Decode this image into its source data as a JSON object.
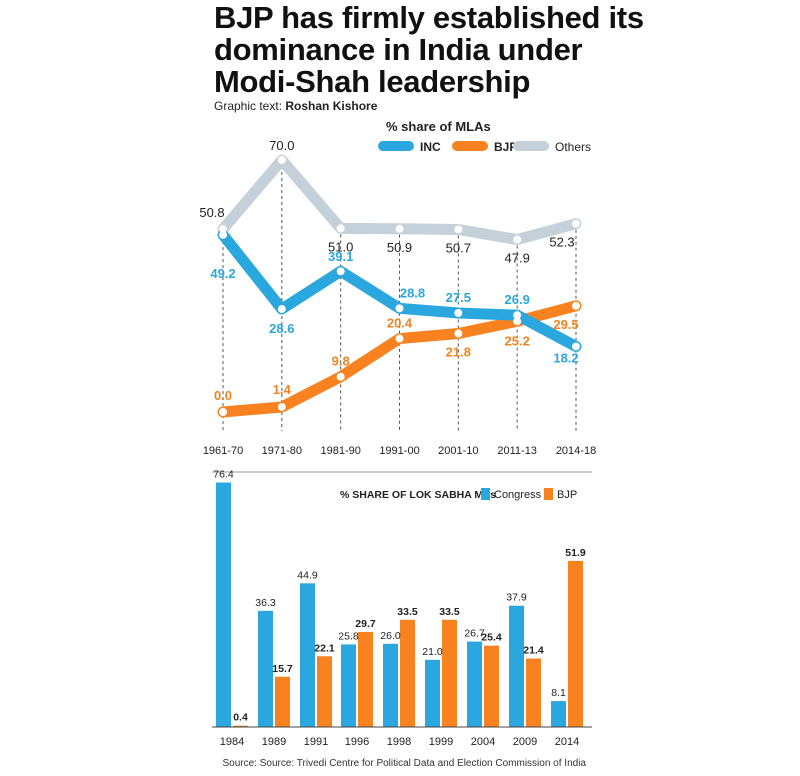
{
  "header": {
    "title_lines": [
      "BJP has firmly established its",
      "dominance in India under",
      "Modi-Shah leadership"
    ],
    "credit_label": "Graphic text:",
    "credit_name": "Roshan Kishore"
  },
  "source": "Source: Source: Trivedi Centre for Political Data and Election Commission of India",
  "colors": {
    "inc": "#2aa7df",
    "bjp": "#f7821f",
    "others": "#c5d1da"
  },
  "chart_data": [
    {
      "type": "line",
      "title": "% share of MLAs",
      "x": [
        "1961-70",
        "1971-80",
        "1981-90",
        "1991-00",
        "2001-10",
        "2011-13",
        "2014-18"
      ],
      "ylim": [
        0,
        75
      ],
      "legend": "top-center",
      "series": [
        {
          "name": "INC",
          "values": [
            49.2,
            28.6,
            39.1,
            28.8,
            27.5,
            26.9,
            18.2
          ],
          "labels": [
            "49.2",
            "28.6",
            "39.1",
            "28.8",
            "27.5",
            "26.9",
            "18.2"
          ]
        },
        {
          "name": "BJP",
          "values": [
            0.0,
            1.4,
            9.8,
            20.4,
            21.8,
            25.2,
            29.5
          ],
          "labels": [
            "0.0",
            "1.4",
            "9.8",
            "20.4",
            "21.8",
            "25.2",
            "29.5"
          ]
        },
        {
          "name": "Others",
          "values": [
            50.8,
            70.0,
            51.0,
            50.9,
            50.7,
            47.9,
            52.3
          ],
          "labels": [
            "50.8",
            "70.0",
            "51.0",
            "50.9",
            "50.7",
            "47.9",
            "52.3"
          ]
        }
      ]
    },
    {
      "type": "bar",
      "title": "% SHARE OF LOK SABHA MPs",
      "categories": [
        "1984",
        "1989",
        "1991",
        "1996",
        "1998",
        "1999",
        "2004",
        "2009",
        "2014"
      ],
      "ylim": [
        0,
        80
      ],
      "legend": "top-right",
      "series": [
        {
          "name": "Congress",
          "values": [
            76.4,
            36.3,
            44.9,
            25.8,
            26.0,
            21.0,
            26.7,
            37.9,
            8.1
          ],
          "labels": [
            "76.4",
            "36.3",
            "44.9",
            "25.8",
            "26.0",
            "21.0",
            "26.7",
            "37.9",
            "8.1"
          ]
        },
        {
          "name": "BJP",
          "values": [
            0.4,
            15.7,
            22.1,
            29.7,
            33.5,
            33.5,
            25.4,
            21.4,
            51.9
          ],
          "labels": [
            "0.4",
            "15.7",
            "22.1",
            "29.7",
            "33.5",
            "33.5",
            "25.4",
            "21.4",
            "51.9"
          ]
        }
      ]
    }
  ]
}
